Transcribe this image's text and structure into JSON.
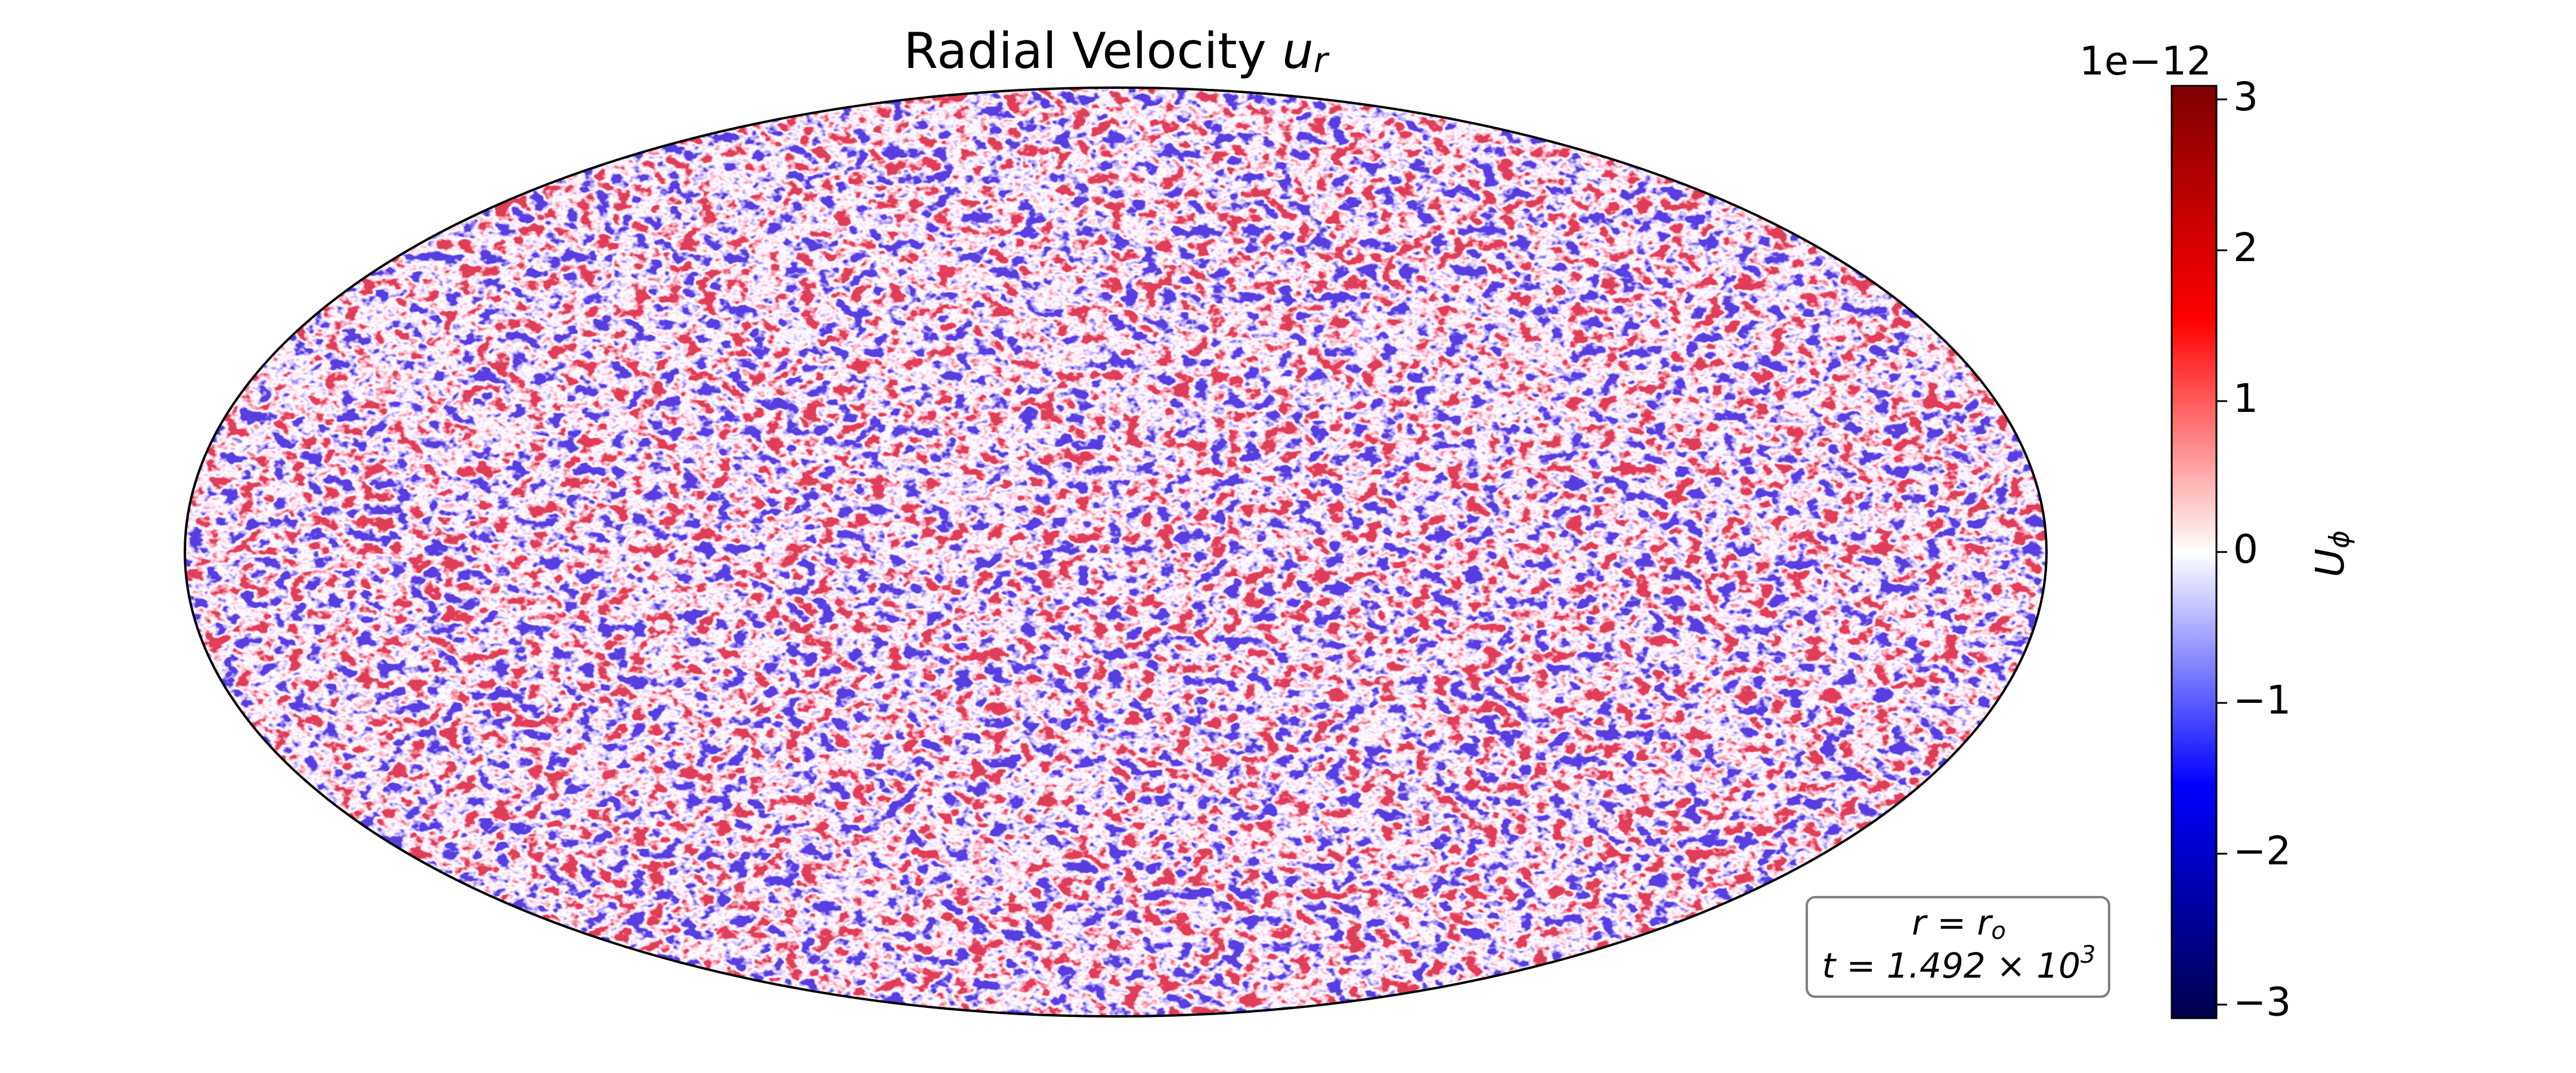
{
  "chart_data": {
    "type": "heatmap",
    "projection": "hammer",
    "title": "Radial Velocity",
    "title_symbol": "u",
    "title_subscript": "r",
    "colorbar_label": "U",
    "colorbar_label_subscript": "ϕ",
    "colorbar_offset": "1e−12",
    "clim": [
      -3.09,
      3.09
    ],
    "cticks": [
      {
        "value": -3,
        "label": "−3"
      },
      {
        "value": -2,
        "label": "−2"
      },
      {
        "value": -1,
        "label": "−1"
      },
      {
        "value": 0,
        "label": "0"
      },
      {
        "value": 1,
        "label": "1"
      },
      {
        "value": 2,
        "label": "2"
      },
      {
        "value": 3,
        "label": "3"
      }
    ],
    "colormap": [
      "#00004c",
      "#0000ff",
      "#ffffff",
      "#ff0000",
      "#7f0000"
    ],
    "annotation": {
      "radius": [
        "r = r",
        "o"
      ],
      "time": [
        "t = 1.492 × 10",
        "3"
      ]
    }
  }
}
